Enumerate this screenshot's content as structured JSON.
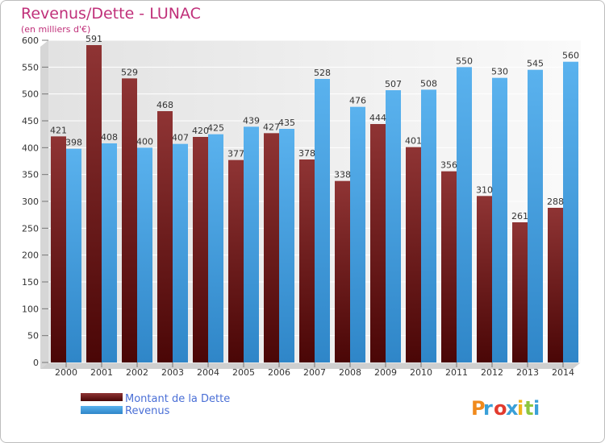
{
  "chart_data": {
    "type": "bar",
    "title": "Revenus/Dette - LUNAC",
    "subtitle": "(en milliers d'€)",
    "categories": [
      "2000",
      "2001",
      "2002",
      "2003",
      "2004",
      "2005",
      "2006",
      "2007",
      "2008",
      "2009",
      "2010",
      "2011",
      "2012",
      "2013",
      "2014"
    ],
    "series": [
      {
        "name": "Montant de la Dette",
        "color": "#8b2a2a",
        "values": [
          421,
          591,
          529,
          468,
          420,
          377,
          427,
          378,
          338,
          444,
          401,
          356,
          310,
          261,
          288
        ]
      },
      {
        "name": "Revenus",
        "color": "#4ea8e6",
        "values": [
          398,
          408,
          400,
          407,
          425,
          439,
          435,
          528,
          476,
          507,
          508,
          550,
          530,
          545,
          560
        ]
      }
    ],
    "ylim": [
      0,
      600
    ],
    "yticks": [
      0,
      50,
      100,
      150,
      200,
      250,
      300,
      350,
      400,
      450,
      500,
      550,
      600
    ],
    "grid": true,
    "legend_position": "bottom-left"
  },
  "branding": {
    "logo_letters": [
      "P",
      "r",
      "o",
      "x",
      "i",
      "t",
      "i"
    ],
    "logo_colors": [
      "#f08a1c",
      "#3aa0d8",
      "#e23b2e",
      "#3aa0d8",
      "#f0b41c",
      "#8dc63f",
      "#3aa0d8"
    ]
  }
}
